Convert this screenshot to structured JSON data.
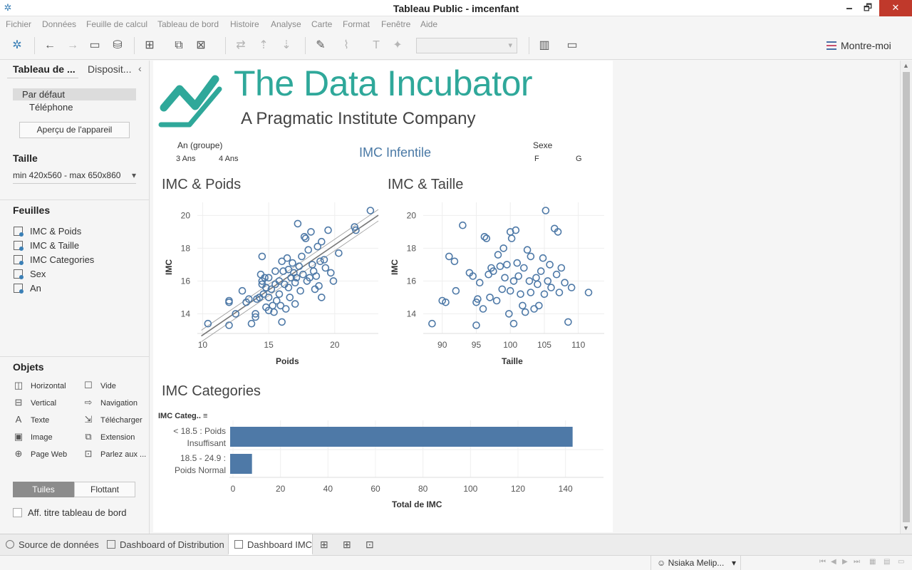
{
  "window": {
    "title": "Tableau Public - imcenfant",
    "minimize": "🗕",
    "restore": "🗗",
    "close": "✕"
  },
  "menu": [
    "Fichier",
    "Données",
    "Feuille de calcul",
    "Tableau de bord",
    "Histoire",
    "Analyse",
    "Carte",
    "Format",
    "Fenêtre",
    "Aide"
  ],
  "toolbar": {
    "show_me": "Montre-moi"
  },
  "left_panel": {
    "tab_active": "Tableau de ...",
    "tab_inactive": "Disposit...",
    "collapse": "‹",
    "device_default": "Par défaut",
    "device_phone": "Téléphone",
    "device_preview": "Aperçu de l'appareil",
    "size_title": "Taille",
    "size_value": "min 420x560 - max 650x860",
    "sheets_title": "Feuilles",
    "sheets": [
      "IMC & Poids",
      "IMC & Taille",
      "IMC Categories",
      "Sex",
      "An"
    ],
    "objects_title": "Objets",
    "objects": [
      {
        "label": "Horizontal",
        "icon": "◫"
      },
      {
        "label": "Vide",
        "icon": "☐"
      },
      {
        "label": "Vertical",
        "icon": "⊟"
      },
      {
        "label": "Navigation",
        "icon": "⇨"
      },
      {
        "label": "Texte",
        "icon": "A"
      },
      {
        "label": "Télécharger",
        "icon": "⇲"
      },
      {
        "label": "Image",
        "icon": "▣"
      },
      {
        "label": "Extension",
        "icon": "⧉"
      },
      {
        "label": "Page Web",
        "icon": "⊕"
      },
      {
        "label": "Parlez aux ...",
        "icon": "⊡"
      }
    ],
    "tiles": "Tuiles",
    "floating": "Flottant",
    "show_title": "Aff. titre tableau de bord"
  },
  "dashboard": {
    "logo_main": "The Data Incubator",
    "logo_sub": "A Pragmatic Institute Company",
    "title": "IMC Infentile",
    "filter_age_label": "An (groupe)",
    "filter_age_values": [
      "3 Ans",
      "4 Ans"
    ],
    "filter_sex_label": "Sexe",
    "filter_sex_values": [
      "F",
      "G"
    ],
    "brand_color": "#2fa89a",
    "mark_color": "#4e79a7"
  },
  "chart_data": [
    {
      "type": "scatter",
      "title": "IMC & Poids",
      "xlabel": "Poids",
      "ylabel": "IMC",
      "xlim": [
        9.6,
        23.3
      ],
      "ylim": [
        12.8,
        20.8
      ],
      "xticks": [
        10,
        15,
        20
      ],
      "yticks": [
        14,
        16,
        18,
        20
      ],
      "trend_line": {
        "slope": 0.55,
        "intercept": 7.2
      },
      "points": [
        [
          10.4,
          13.4
        ],
        [
          12.0,
          13.3
        ],
        [
          12.0,
          14.8
        ],
        [
          12.0,
          14.7
        ],
        [
          12.5,
          14.0
        ],
        [
          13.0,
          15.4
        ],
        [
          13.3,
          14.7
        ],
        [
          13.5,
          14.9
        ],
        [
          13.7,
          13.4
        ],
        [
          14.0,
          14.0
        ],
        [
          14.0,
          13.8
        ],
        [
          14.1,
          14.9
        ],
        [
          14.3,
          15.0
        ],
        [
          14.4,
          16.4
        ],
        [
          14.5,
          17.5
        ],
        [
          14.5,
          16.0
        ],
        [
          14.5,
          15.8
        ],
        [
          14.6,
          15.2
        ],
        [
          14.7,
          16.2
        ],
        [
          14.8,
          14.4
        ],
        [
          14.8,
          15.6
        ],
        [
          15.0,
          15.0
        ],
        [
          15.0,
          14.2
        ],
        [
          15.0,
          16.2
        ],
        [
          15.2,
          15.5
        ],
        [
          15.3,
          14.5
        ],
        [
          15.4,
          14.1
        ],
        [
          15.5,
          15.8
        ],
        [
          15.5,
          16.6
        ],
        [
          15.6,
          14.8
        ],
        [
          15.8,
          16.0
        ],
        [
          15.8,
          15.2
        ],
        [
          15.9,
          14.5
        ],
        [
          16.0,
          17.2
        ],
        [
          16.0,
          13.5
        ],
        [
          16.1,
          16.6
        ],
        [
          16.2,
          15.8
        ],
        [
          16.3,
          14.3
        ],
        [
          16.4,
          17.4
        ],
        [
          16.5,
          16.7
        ],
        [
          16.5,
          15.6
        ],
        [
          16.6,
          15.0
        ],
        [
          16.7,
          16.2
        ],
        [
          16.8,
          17.1
        ],
        [
          16.9,
          16.5
        ],
        [
          17.0,
          15.9
        ],
        [
          17.0,
          14.6
        ],
        [
          17.1,
          16.2
        ],
        [
          17.2,
          19.5
        ],
        [
          17.3,
          16.9
        ],
        [
          17.4,
          15.4
        ],
        [
          17.5,
          17.5
        ],
        [
          17.6,
          16.4
        ],
        [
          17.7,
          18.7
        ],
        [
          17.8,
          18.6
        ],
        [
          17.9,
          16.0
        ],
        [
          18.0,
          17.9
        ],
        [
          18.1,
          16.2
        ],
        [
          18.2,
          19.0
        ],
        [
          18.3,
          17.0
        ],
        [
          18.4,
          16.6
        ],
        [
          18.5,
          15.5
        ],
        [
          18.6,
          16.3
        ],
        [
          18.7,
          18.1
        ],
        [
          18.8,
          15.7
        ],
        [
          18.9,
          17.2
        ],
        [
          19.0,
          18.4
        ],
        [
          19.0,
          15.0
        ],
        [
          19.2,
          17.3
        ],
        [
          19.3,
          16.8
        ],
        [
          19.5,
          19.1
        ],
        [
          19.7,
          16.5
        ],
        [
          19.9,
          16.0
        ],
        [
          20.3,
          17.7
        ],
        [
          21.5,
          19.3
        ],
        [
          21.6,
          19.1
        ],
        [
          22.7,
          20.3
        ]
      ]
    },
    {
      "type": "scatter",
      "title": "IMC & Taille",
      "xlabel": "Taille",
      "ylabel": "IMC",
      "xlim": [
        87.2,
        113.8
      ],
      "ylim": [
        12.8,
        20.8
      ],
      "xticks": [
        90,
        95,
        100,
        105,
        110
      ],
      "yticks": [
        14,
        16,
        18,
        20
      ],
      "points": [
        [
          88.5,
          13.4
        ],
        [
          90.0,
          14.8
        ],
        [
          90.5,
          14.7
        ],
        [
          91.0,
          17.5
        ],
        [
          91.8,
          17.2
        ],
        [
          92.0,
          15.4
        ],
        [
          93.0,
          19.4
        ],
        [
          94.0,
          16.5
        ],
        [
          94.5,
          16.3
        ],
        [
          95.0,
          13.3
        ],
        [
          95.0,
          14.7
        ],
        [
          95.2,
          14.9
        ],
        [
          95.5,
          15.9
        ],
        [
          96.0,
          14.3
        ],
        [
          96.2,
          18.7
        ],
        [
          96.5,
          18.6
        ],
        [
          96.8,
          16.4
        ],
        [
          97.0,
          15.0
        ],
        [
          97.2,
          16.8
        ],
        [
          97.5,
          16.6
        ],
        [
          98.0,
          14.8
        ],
        [
          98.2,
          17.6
        ],
        [
          98.5,
          16.9
        ],
        [
          98.8,
          15.5
        ],
        [
          99.0,
          18.0
        ],
        [
          99.2,
          16.2
        ],
        [
          99.5,
          17.0
        ],
        [
          99.8,
          14.0
        ],
        [
          100.0,
          19.0
        ],
        [
          100.0,
          15.4
        ],
        [
          100.2,
          18.6
        ],
        [
          100.5,
          13.4
        ],
        [
          100.5,
          16.0
        ],
        [
          100.8,
          19.1
        ],
        [
          101.0,
          17.1
        ],
        [
          101.2,
          16.3
        ],
        [
          101.5,
          15.2
        ],
        [
          101.8,
          14.5
        ],
        [
          102.0,
          16.8
        ],
        [
          102.2,
          14.1
        ],
        [
          102.5,
          17.9
        ],
        [
          102.8,
          16.0
        ],
        [
          103.0,
          15.3
        ],
        [
          103.0,
          17.5
        ],
        [
          103.5,
          14.3
        ],
        [
          103.8,
          16.2
        ],
        [
          104.0,
          15.8
        ],
        [
          104.2,
          14.5
        ],
        [
          104.5,
          16.6
        ],
        [
          104.8,
          17.4
        ],
        [
          105.0,
          15.2
        ],
        [
          105.2,
          20.3
        ],
        [
          105.5,
          16.0
        ],
        [
          105.8,
          17.0
        ],
        [
          106.0,
          15.6
        ],
        [
          106.5,
          19.2
        ],
        [
          106.8,
          16.4
        ],
        [
          107.0,
          19.0
        ],
        [
          107.2,
          15.3
        ],
        [
          107.5,
          16.8
        ],
        [
          108.0,
          15.9
        ],
        [
          108.5,
          13.5
        ],
        [
          109.0,
          15.6
        ],
        [
          111.5,
          15.3
        ]
      ]
    },
    {
      "type": "bar",
      "orientation": "horizontal",
      "title": "IMC Categories",
      "header": "IMC Categ..",
      "categories": [
        [
          "< 18.5 : Poids",
          "Insuffisant"
        ],
        [
          "18.5 - 24.9 :",
          "Poids Normal"
        ]
      ],
      "values": [
        143,
        8
      ],
      "xlabel": "Total de IMC",
      "xlim": [
        0,
        150
      ],
      "xticks": [
        0,
        20,
        40,
        60,
        80,
        100,
        120,
        140
      ]
    }
  ],
  "bottom_tabs": {
    "data_source": "Source de données",
    "tab1": "Dashboard of Distribution",
    "tab2": "Dashboard IMC"
  },
  "status": {
    "user": "Nsiaka Melip..."
  }
}
